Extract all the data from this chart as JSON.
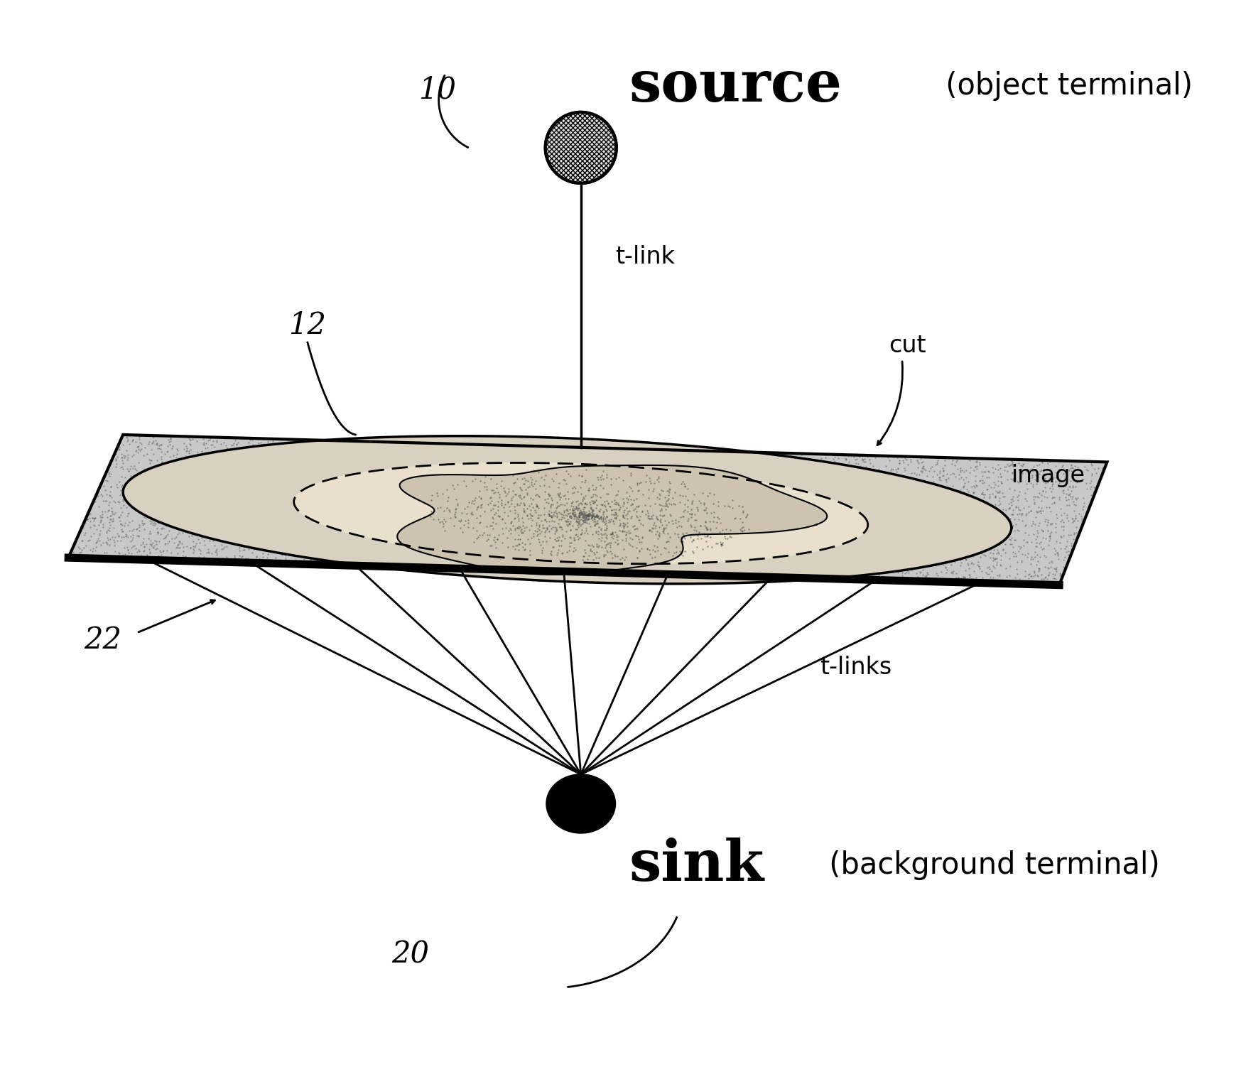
{
  "background_color": "#ffffff",
  "source_label": "source",
  "source_sublabel": " (object terminal)",
  "sink_label": "sink",
  "sink_sublabel": " (background terminal)",
  "source_number": "10",
  "sink_number": "20",
  "label_12": "12",
  "label_22": "22",
  "tlink_label": "t-link",
  "tlinks_label": "t-links",
  "cut_label": "cut",
  "image_label": "image",
  "plane_stipple_color": "#aaaaaa",
  "plane_bg_color": "#bbbbbb"
}
